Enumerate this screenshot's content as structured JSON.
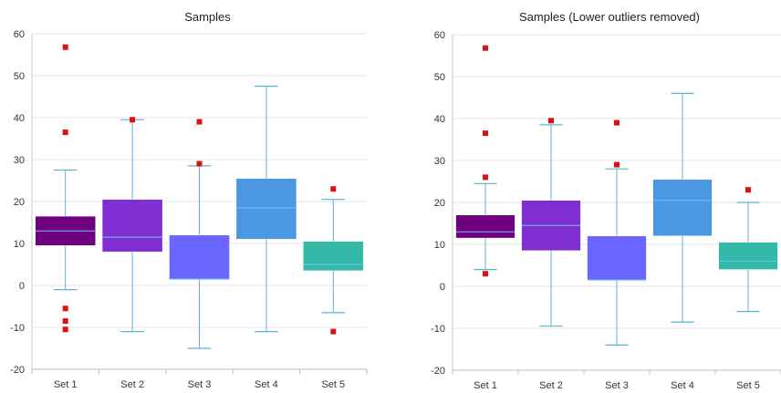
{
  "chart_data": [
    {
      "type": "box",
      "title": "Samples",
      "xlabel": "",
      "ylabel": "",
      "ylim": [
        -20,
        60
      ],
      "yticks": [
        -20,
        -10,
        0,
        10,
        20,
        30,
        40,
        50,
        60
      ],
      "grid": true,
      "categories": [
        "Set 1",
        "Set 2",
        "Set 3",
        "Set 4",
        "Set 5"
      ],
      "colors": [
        "#6f007f",
        "#7f2fd1",
        "#6a66ff",
        "#4c97e2",
        "#34b8a8"
      ],
      "boxes": [
        {
          "whisker_low": -1,
          "q1": 9.5,
          "median": 13,
          "q3": 16.5,
          "whisker_high": 27.5,
          "outliers": [
            56.8,
            36.5,
            -5.5,
            -8.5,
            -10.5
          ]
        },
        {
          "whisker_low": -11,
          "q1": 8,
          "median": 11.5,
          "q3": 20.5,
          "whisker_high": 39.5,
          "outliers": [
            39.5
          ]
        },
        {
          "whisker_low": -15,
          "q1": 1.5,
          "median": 1.5,
          "q3": 12,
          "whisker_high": 28.5,
          "outliers": [
            39,
            29
          ]
        },
        {
          "whisker_low": -11,
          "q1": 11,
          "median": 18.5,
          "q3": 25.5,
          "whisker_high": 47.5,
          "outliers": []
        },
        {
          "whisker_low": -6.5,
          "q1": 3.5,
          "median": 5,
          "q3": 10.5,
          "whisker_high": 20.5,
          "outliers": [
            23,
            -11
          ]
        }
      ]
    },
    {
      "type": "box",
      "title": "Samples (Lower outliers removed)",
      "xlabel": "",
      "ylabel": "",
      "ylim": [
        -20,
        60
      ],
      "yticks": [
        -20,
        -10,
        0,
        10,
        20,
        30,
        40,
        50,
        60
      ],
      "grid": true,
      "categories": [
        "Set 1",
        "Set 2",
        "Set 3",
        "Set 4",
        "Set 5"
      ],
      "colors": [
        "#6f007f",
        "#7f2fd1",
        "#6a66ff",
        "#4c97e2",
        "#34b8a8"
      ],
      "boxes": [
        {
          "whisker_low": 4,
          "q1": 11.5,
          "median": 13,
          "q3": 17,
          "whisker_high": 24.5,
          "outliers": [
            56.8,
            36.5,
            26,
            3
          ]
        },
        {
          "whisker_low": -9.5,
          "q1": 8.5,
          "median": 14.5,
          "q3": 20.5,
          "whisker_high": 38.5,
          "outliers": [
            39.5
          ]
        },
        {
          "whisker_low": -14,
          "q1": 1.5,
          "median": 1.5,
          "q3": 12,
          "whisker_high": 28,
          "outliers": [
            39,
            29
          ]
        },
        {
          "whisker_low": -8.5,
          "q1": 12,
          "median": 20.5,
          "q3": 25.5,
          "whisker_high": 46,
          "outliers": []
        },
        {
          "whisker_low": -6,
          "q1": 4,
          "median": 6,
          "q3": 10.5,
          "whisker_high": 20,
          "outliers": [
            23
          ]
        }
      ]
    }
  ]
}
